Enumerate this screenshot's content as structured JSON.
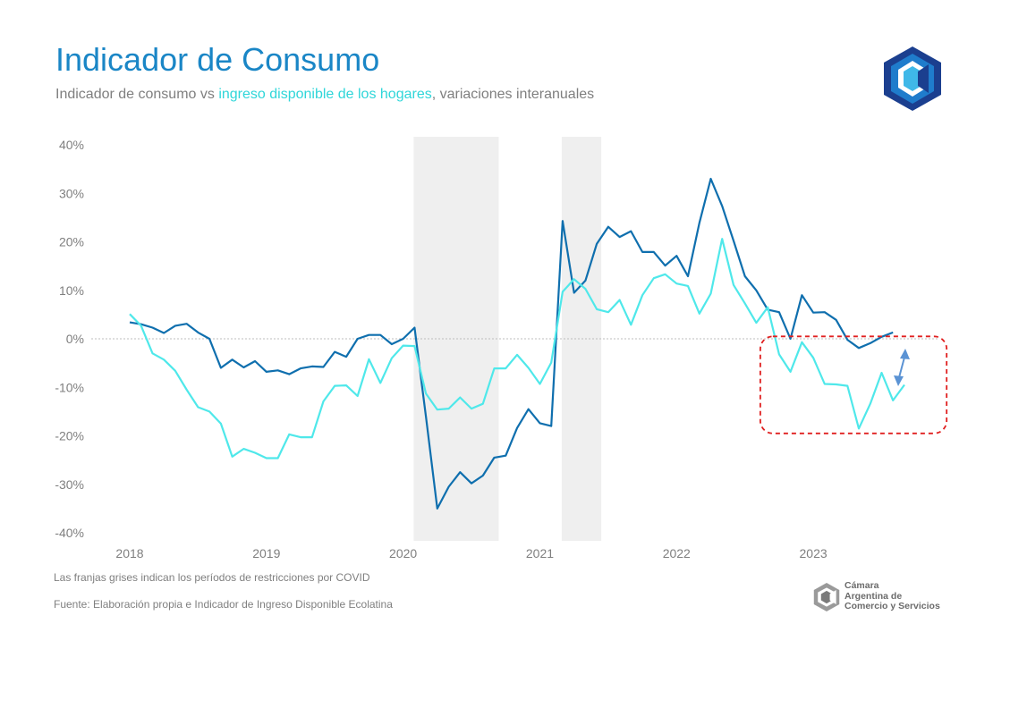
{
  "header": {
    "title": "Indicador de Consumo",
    "subtitle_pre": "Indicador de consumo vs ",
    "subtitle_highlight": "ingreso disponible de los hogares",
    "subtitle_post": ", variaciones interanuales"
  },
  "notes": {
    "covid": "Las franjas grises indican los períodos de restricciones por COVID",
    "source": "Fuente: Elaboración propia e Indicador de Ingreso Disponible Ecolatina"
  },
  "brand": {
    "line1": "Cámara",
    "line2": "Argentina de",
    "line3": "Comercio y Servicios",
    "logo_icon": "cac-hexagon-logo-icon",
    "colors": {
      "logo_dark": "#1b3f8f",
      "logo_mid": "#1f7ccc",
      "logo_light": "#3fb8e8",
      "gray_logo": "#808080"
    }
  },
  "colors": {
    "title": "#1a86c6",
    "consumo": "#0f6fae",
    "ingreso": "#4fe8ea",
    "covid_band": "#efefef",
    "highlight_box": "#e02020",
    "arrow": "#5b93d4"
  },
  "chart_data": {
    "type": "line",
    "ylim": [
      -40,
      40
    ],
    "yticks": [
      40,
      30,
      20,
      10,
      0,
      -10,
      -20,
      -30,
      -40
    ],
    "ytick_labels": [
      "40%",
      "30%",
      "20%",
      "10%",
      "0%",
      "-10%",
      "-20%",
      "-30%",
      "-40%"
    ],
    "xticks": [
      "2018",
      "2019",
      "2020",
      "2021",
      "2022",
      "2023"
    ],
    "x_start": "2018-01",
    "zero_line": true,
    "covid_bands": [
      [
        "2020-02",
        "2020-09"
      ],
      [
        "2021-03",
        "2021-06"
      ]
    ],
    "highlight": {
      "x_range": [
        "2022-10",
        "2023-12"
      ],
      "y_range": [
        -19.5,
        0.5
      ],
      "style": "dashed box with double arrow"
    },
    "series": [
      {
        "key": "consumo",
        "values": [
          3.4,
          3.0,
          2.3,
          1.2,
          2.7,
          3.1,
          1.3,
          0.0,
          -6.0,
          -4.3,
          -5.9,
          -4.6,
          -6.8,
          -6.5,
          -7.3,
          -6.1,
          -5.7,
          -5.8,
          -2.7,
          -3.7,
          0.0,
          0.8,
          0.8,
          -1.1,
          0.0,
          2.3,
          -16.0,
          -35.0,
          -30.5,
          -27.5,
          -29.8,
          -28.2,
          -24.5,
          -24.1,
          -18.4,
          -14.5,
          -17.4,
          -18.0,
          24.3,
          9.5,
          12.0,
          19.6,
          23.1,
          21.0,
          22.2,
          17.9,
          17.9,
          15.1,
          17.1,
          12.9,
          23.9,
          33.0,
          27.4,
          20.2,
          12.9,
          10.0,
          6.0,
          5.5,
          0.0,
          9.0,
          5.4,
          5.5,
          3.9,
          -0.2,
          -1.9,
          -0.9,
          0.4,
          1.3
        ],
        "start": "2018-01"
      },
      {
        "key": "ingreso",
        "values": [
          5.1,
          2.7,
          -3.0,
          -4.3,
          -6.6,
          -10.5,
          -14.1,
          -15.0,
          -17.5,
          -24.3,
          -22.7,
          -23.5,
          -24.6,
          -24.6,
          -19.7,
          -20.3,
          -20.3,
          -12.9,
          -9.7,
          -9.6,
          -11.8,
          -4.2,
          -9.1,
          -4.0,
          -1.4,
          -1.5,
          -11.3,
          -14.6,
          -14.4,
          -12.1,
          -14.4,
          -13.4,
          -6.1,
          -6.1,
          -3.3,
          -6.0,
          -9.3,
          -4.9,
          9.7,
          12.3,
          10.3,
          6.1,
          5.5,
          8.0,
          2.9,
          9.0,
          12.5,
          13.3,
          11.4,
          10.9,
          5.2,
          9.3,
          20.6,
          11.1,
          7.3,
          3.3,
          6.5,
          -3.2,
          -6.8,
          -0.7,
          -3.9,
          -9.3,
          -9.4,
          -9.7,
          -18.5,
          -13.4,
          -7.0,
          -12.7,
          -9.5
        ],
        "start": "2018-01"
      }
    ]
  }
}
